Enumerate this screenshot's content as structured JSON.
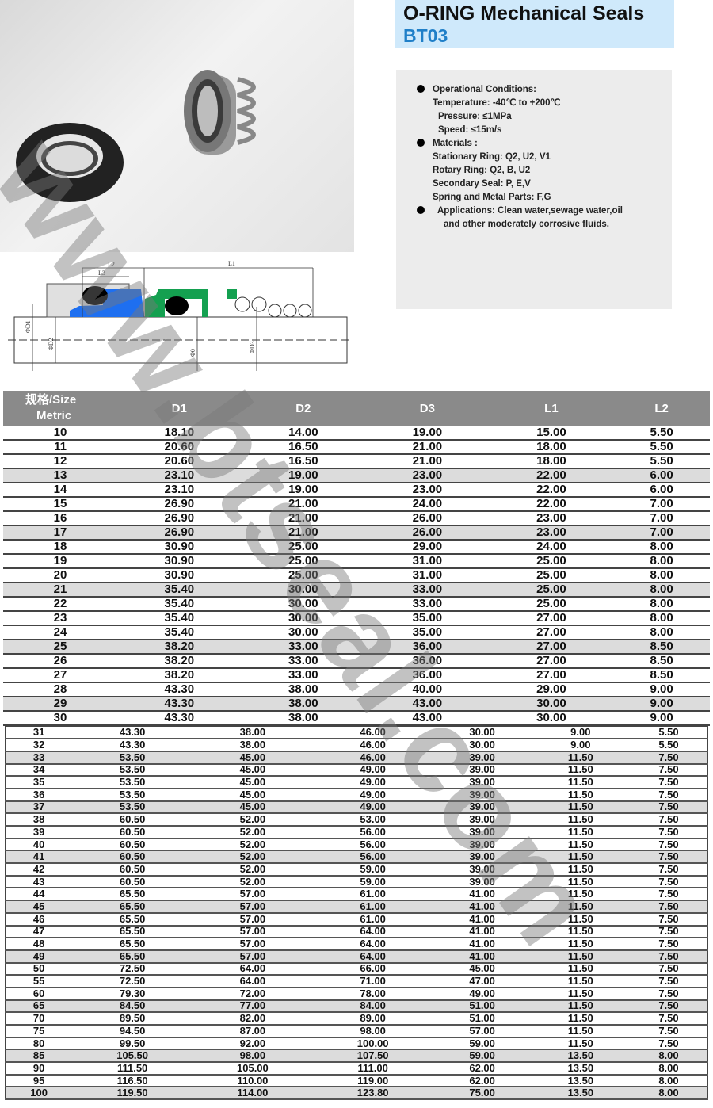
{
  "header": {
    "title": "O-RING Mechanical Seals",
    "model": "BT03"
  },
  "specs": {
    "operational_heading": "Operational Conditions:",
    "temperature": "Temperature: -40℃ to +200℃",
    "pressure": "Pressure: ≤1MPa",
    "speed": "Speed: ≤15m/s",
    "materials_heading": "Materials :",
    "stationary_ring": "Stationary Ring: Q2, U2, V1",
    "rotary_ring": "Rotary Ring: Q2, B, U2",
    "secondary_seal": "Secondary Seal: P, E,V",
    "spring_metal": "Spring and Metal Parts: F,G",
    "applications_line1": "Applications: Clean water,sewage water,oil",
    "applications_line2": "and other moderately corrosive fluids."
  },
  "diagram": {
    "labels": {
      "L1": "L1",
      "L2": "L2",
      "L3": "L3",
      "d1": "ΦD1",
      "d2": "ΦD2",
      "d0": "Φ0",
      "d3": "ΦD3"
    },
    "colors": {
      "rotary": "#1e6ff0",
      "stationary_holder": "#14a050",
      "oring": "#000000",
      "seat": "#dcdcdc"
    }
  },
  "watermark": "www.btseal.com",
  "table": {
    "headers": {
      "size_line1": "规格/Size",
      "size_line2": "Metric",
      "cols": [
        "D1",
        "D2",
        "D3",
        "L1",
        "L2"
      ]
    },
    "shade_color": "#dcdcdc",
    "rows_part1": [
      [
        "10",
        "18.10",
        "14.00",
        "19.00",
        "15.00",
        "5.50",
        false
      ],
      [
        "11",
        "20.60",
        "16.50",
        "21.00",
        "18.00",
        "5.50",
        false
      ],
      [
        "12",
        "20.60",
        "16.50",
        "21.00",
        "18.00",
        "5.50",
        false
      ],
      [
        "13",
        "23.10",
        "19.00",
        "23.00",
        "22.00",
        "6.00",
        true
      ],
      [
        "14",
        "23.10",
        "19.00",
        "23.00",
        "22.00",
        "6.00",
        false
      ],
      [
        "15",
        "26.90",
        "21.00",
        "24.00",
        "22.00",
        "7.00",
        false
      ],
      [
        "16",
        "26.90",
        "21.00",
        "26.00",
        "23.00",
        "7.00",
        false
      ],
      [
        "17",
        "26.90",
        "21.00",
        "26.00",
        "23.00",
        "7.00",
        true
      ],
      [
        "18",
        "30.90",
        "25.00",
        "29.00",
        "24.00",
        "8.00",
        false
      ],
      [
        "19",
        "30.90",
        "25.00",
        "31.00",
        "25.00",
        "8.00",
        false
      ],
      [
        "20",
        "30.90",
        "25.00",
        "31.00",
        "25.00",
        "8.00",
        false
      ],
      [
        "21",
        "35.40",
        "30.00",
        "33.00",
        "25.00",
        "8.00",
        true
      ],
      [
        "22",
        "35.40",
        "30.00",
        "33.00",
        "25.00",
        "8.00",
        false
      ],
      [
        "23",
        "35.40",
        "30.00",
        "35.00",
        "27.00",
        "8.00",
        false
      ],
      [
        "24",
        "35.40",
        "30.00",
        "35.00",
        "27.00",
        "8.00",
        false
      ],
      [
        "25",
        "38.20",
        "33.00",
        "36.00",
        "27.00",
        "8.50",
        true
      ],
      [
        "26",
        "38.20",
        "33.00",
        "36.00",
        "27.00",
        "8.50",
        false
      ],
      [
        "27",
        "38.20",
        "33.00",
        "36.00",
        "27.00",
        "8.50",
        false
      ],
      [
        "28",
        "43.30",
        "38.00",
        "40.00",
        "29.00",
        "9.00",
        false
      ],
      [
        "29",
        "43.30",
        "38.00",
        "43.00",
        "30.00",
        "9.00",
        true
      ],
      [
        "30",
        "43.30",
        "38.00",
        "43.00",
        "30.00",
        "9.00",
        false
      ]
    ],
    "rows_part2": [
      [
        "31",
        "43.30",
        "38.00",
        "46.00",
        "30.00",
        "9.00",
        "5.50",
        false
      ],
      [
        "32",
        "43.30",
        "38.00",
        "46.00",
        "30.00",
        "9.00",
        "5.50",
        false
      ],
      [
        "33",
        "53.50",
        "45.00",
        "46.00",
        "39.00",
        "11.50",
        "7.50",
        true
      ],
      [
        "34",
        "53.50",
        "45.00",
        "49.00",
        "39.00",
        "11.50",
        "7.50",
        false
      ],
      [
        "35",
        "53.50",
        "45.00",
        "49.00",
        "39.00",
        "11.50",
        "7.50",
        false
      ],
      [
        "36",
        "53.50",
        "45.00",
        "49.00",
        "39.00",
        "11.50",
        "7.50",
        false
      ],
      [
        "37",
        "53.50",
        "45.00",
        "49.00",
        "39.00",
        "11.50",
        "7.50",
        true
      ],
      [
        "38",
        "60.50",
        "52.00",
        "53.00",
        "39.00",
        "11.50",
        "7.50",
        false
      ],
      [
        "39",
        "60.50",
        "52.00",
        "56.00",
        "39.00",
        "11.50",
        "7.50",
        false
      ],
      [
        "40",
        "60.50",
        "52.00",
        "56.00",
        "39.00",
        "11.50",
        "7.50",
        false
      ],
      [
        "41",
        "60.50",
        "52.00",
        "56.00",
        "39.00",
        "11.50",
        "7.50",
        true
      ],
      [
        "42",
        "60.50",
        "52.00",
        "59.00",
        "39.00",
        "11.50",
        "7.50",
        false
      ],
      [
        "43",
        "60.50",
        "52.00",
        "59.00",
        "39.00",
        "11.50",
        "7.50",
        false
      ],
      [
        "44",
        "65.50",
        "57.00",
        "61.00",
        "41.00",
        "11.50",
        "7.50",
        false
      ],
      [
        "45",
        "65.50",
        "57.00",
        "61.00",
        "41.00",
        "11.50",
        "7.50",
        true
      ],
      [
        "46",
        "65.50",
        "57.00",
        "61.00",
        "41.00",
        "11.50",
        "7.50",
        false
      ],
      [
        "47",
        "65.50",
        "57.00",
        "64.00",
        "41.00",
        "11.50",
        "7.50",
        false
      ],
      [
        "48",
        "65.50",
        "57.00",
        "64.00",
        "41.00",
        "11.50",
        "7.50",
        false
      ],
      [
        "49",
        "65.50",
        "57.00",
        "64.00",
        "41.00",
        "11.50",
        "7.50",
        true
      ],
      [
        "50",
        "72.50",
        "64.00",
        "66.00",
        "45.00",
        "11.50",
        "7.50",
        false
      ],
      [
        "55",
        "72.50",
        "64.00",
        "71.00",
        "47.00",
        "11.50",
        "7.50",
        false
      ],
      [
        "60",
        "79.30",
        "72.00",
        "78.00",
        "49.00",
        "11.50",
        "7.50",
        false
      ],
      [
        "65",
        "84.50",
        "77.00",
        "84.00",
        "51.00",
        "11.50",
        "7.50",
        true
      ],
      [
        "70",
        "89.50",
        "82.00",
        "89.00",
        "51.00",
        "11.50",
        "7.50",
        false
      ],
      [
        "75",
        "94.50",
        "87.00",
        "98.00",
        "57.00",
        "11.50",
        "7.50",
        false
      ],
      [
        "80",
        "99.50",
        "92.00",
        "100.00",
        "59.00",
        "11.50",
        "7.50",
        false
      ],
      [
        "85",
        "105.50",
        "98.00",
        "107.50",
        "59.00",
        "13.50",
        "8.00",
        true
      ],
      [
        "90",
        "111.50",
        "105.00",
        "111.00",
        "62.00",
        "13.50",
        "8.00",
        false
      ],
      [
        "95",
        "116.50",
        "110.00",
        "119.00",
        "62.00",
        "13.50",
        "8.00",
        false
      ],
      [
        "100",
        "119.50",
        "114.00",
        "123.80",
        "75.00",
        "13.50",
        "8.00",
        true
      ]
    ]
  }
}
